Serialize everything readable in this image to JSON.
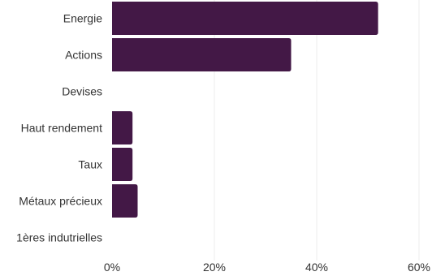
{
  "colors": {
    "bar": "#431846",
    "grid": "#ececec",
    "text": "#333333",
    "background": "#ffffff"
  },
  "chart_data": {
    "type": "bar",
    "orientation": "horizontal",
    "title": "",
    "xlabel": "",
    "ylabel": "",
    "categories": [
      "Energie",
      "Actions",
      "Devises",
      "Haut rendement",
      "Taux",
      "Métaux précieux",
      "1ères indutrielles"
    ],
    "values": [
      52,
      35,
      0,
      4,
      4,
      5,
      0
    ],
    "xlim": [
      0,
      60
    ],
    "xticks": [
      0,
      20,
      40,
      60
    ],
    "xtick_labels": [
      "0%",
      "20%",
      "40%",
      "60%"
    ],
    "grid": true,
    "legend": "none"
  }
}
